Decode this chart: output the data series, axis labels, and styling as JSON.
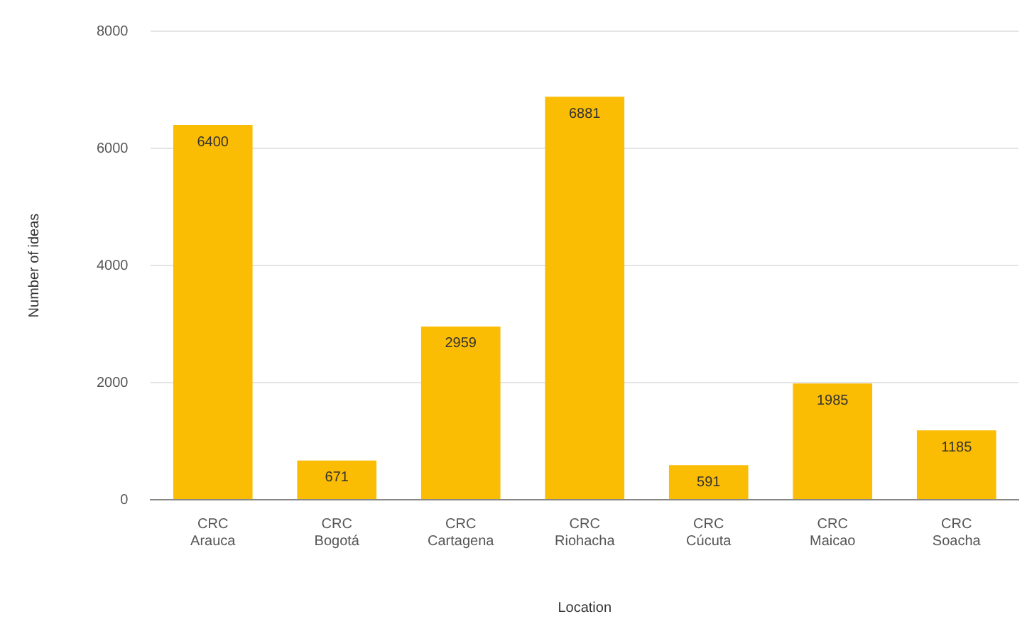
{
  "chart_data": {
    "type": "bar",
    "xlabel": "Location",
    "ylabel": "Number of ideas",
    "categories": [
      "CRC Arauca",
      "CRC Bogotá",
      "CRC Cartagena",
      "CRC Riohacha",
      "CRC Cúcuta",
      "CRC Maicao",
      "CRC Soacha"
    ],
    "values": [
      6400,
      671,
      2959,
      6881,
      591,
      1985,
      1185
    ],
    "color": "#fbbc04",
    "ylim": [
      0,
      8000
    ],
    "yticks": [
      0,
      2000,
      4000,
      6000,
      8000
    ],
    "grid": "y",
    "legend": false,
    "data_labels": true
  }
}
